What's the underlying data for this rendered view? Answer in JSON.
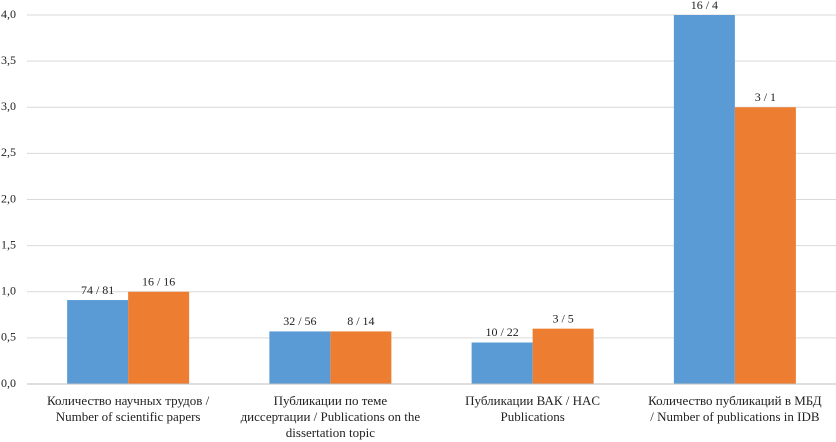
{
  "chart_data": {
    "type": "bar",
    "categories": [
      "Количество научных трудов / Number of scientific papers",
      "Публикации по теме диссертации / Publications on the dissertation topic",
      "Публикации ВАК / HAC Publications",
      "Количество публикаций в МБД / Number of publications in IDB"
    ],
    "series": [
      {
        "color": "#5b9bd5",
        "values": [
          0.91,
          0.57,
          0.45,
          4.0
        ],
        "value_labels": [
          "74 / 81",
          "32 / 56",
          "10 / 22",
          "16 / 4"
        ]
      },
      {
        "color": "#ed7d31",
        "values": [
          1.0,
          0.57,
          0.6,
          3.0
        ],
        "value_labels": [
          "16 / 16",
          "8 / 14",
          "3 / 5",
          "3 / 1"
        ]
      }
    ],
    "ylim": [
      0,
      4
    ],
    "yticks": [
      {
        "value": 0,
        "label": "0,0"
      },
      {
        "value": 0.5,
        "label": "0,5"
      },
      {
        "value": 1,
        "label": "1,0"
      },
      {
        "value": 1.5,
        "label": "1,5"
      },
      {
        "value": 2,
        "label": "2,0"
      },
      {
        "value": 2.5,
        "label": "2,5"
      },
      {
        "value": 3,
        "label": "3,0"
      },
      {
        "value": 3.5,
        "label": "3,5"
      },
      {
        "value": 4,
        "label": "4,0"
      }
    ],
    "grid": true
  }
}
